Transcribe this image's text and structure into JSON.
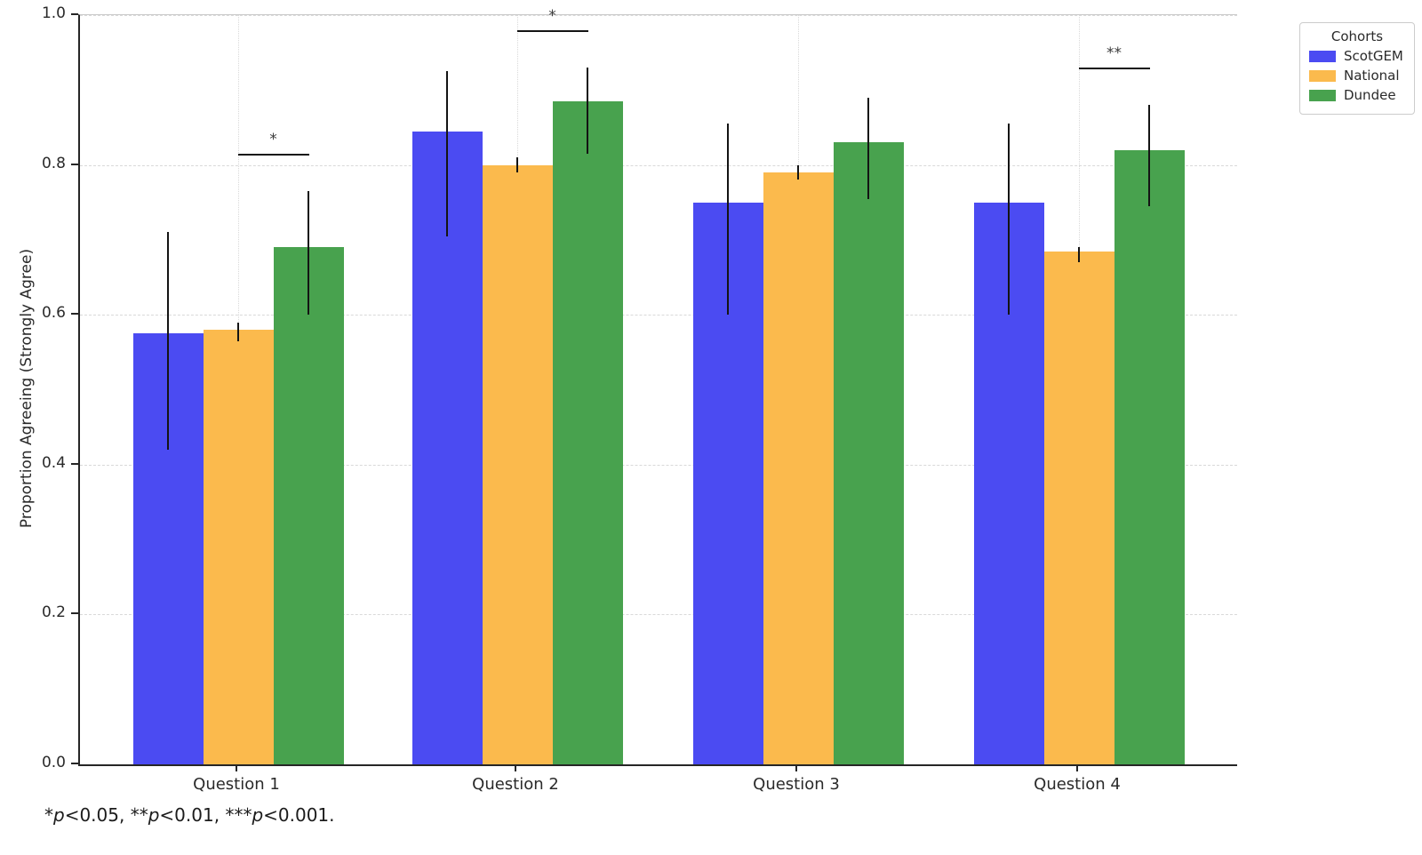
{
  "chart_data": {
    "type": "bar",
    "title": "",
    "xlabel": "",
    "ylabel": "Proportion Agreeing (Strongly Agree)",
    "ylim": [
      0.0,
      1.0
    ],
    "yticks": [
      0.0,
      0.2,
      0.4,
      0.6,
      0.8,
      1.0
    ],
    "grid": {
      "horizontal": "dashed",
      "vertical": "dotted-at-category-centers",
      "color": "#d9d9d9"
    },
    "categories": [
      "Question 1",
      "Question 2",
      "Question 3",
      "Question 4"
    ],
    "series": [
      {
        "name": "ScotGEM",
        "color": "#4b4bf2",
        "values": [
          0.575,
          0.845,
          0.75,
          0.75
        ],
        "ci_low": [
          0.42,
          0.705,
          0.6,
          0.6
        ],
        "ci_high": [
          0.71,
          0.925,
          0.855,
          0.855
        ]
      },
      {
        "name": "National",
        "color": "#fbba4d",
        "values": [
          0.58,
          0.8,
          0.79,
          0.685
        ],
        "ci_low": [
          0.565,
          0.79,
          0.78,
          0.67
        ],
        "ci_high": [
          0.59,
          0.81,
          0.8,
          0.69
        ]
      },
      {
        "name": "Dundee",
        "color": "#48a24e",
        "values": [
          0.69,
          0.885,
          0.83,
          0.82
        ],
        "ci_low": [
          0.6,
          0.815,
          0.755,
          0.745
        ],
        "ci_high": [
          0.765,
          0.93,
          0.89,
          0.88
        ]
      }
    ],
    "error_bar_color": "#141414",
    "significance": [
      {
        "category_index": 0,
        "from_series": "National",
        "to_series": "Dundee",
        "label": "*",
        "bar_y": 0.815
      },
      {
        "category_index": 1,
        "from_series": "National",
        "to_series": "Dundee",
        "label": "*",
        "bar_y": 0.98
      },
      {
        "category_index": 3,
        "from_series": "National",
        "to_series": "Dundee",
        "label": "**",
        "bar_y": 0.93
      }
    ],
    "legend": {
      "title": "Cohorts",
      "position": "outside-upper-right"
    }
  },
  "footnote": {
    "parts": [
      {
        "text": "*",
        "italic": false
      },
      {
        "text": "p",
        "italic": true
      },
      {
        "text": "<0.05, ",
        "italic": false
      },
      {
        "text": "**",
        "italic": false
      },
      {
        "text": "p",
        "italic": true
      },
      {
        "text": "<0.01, ",
        "italic": false
      },
      {
        "text": "***",
        "italic": false
      },
      {
        "text": "p",
        "italic": true
      },
      {
        "text": "<0.001.",
        "italic": false
      }
    ]
  }
}
